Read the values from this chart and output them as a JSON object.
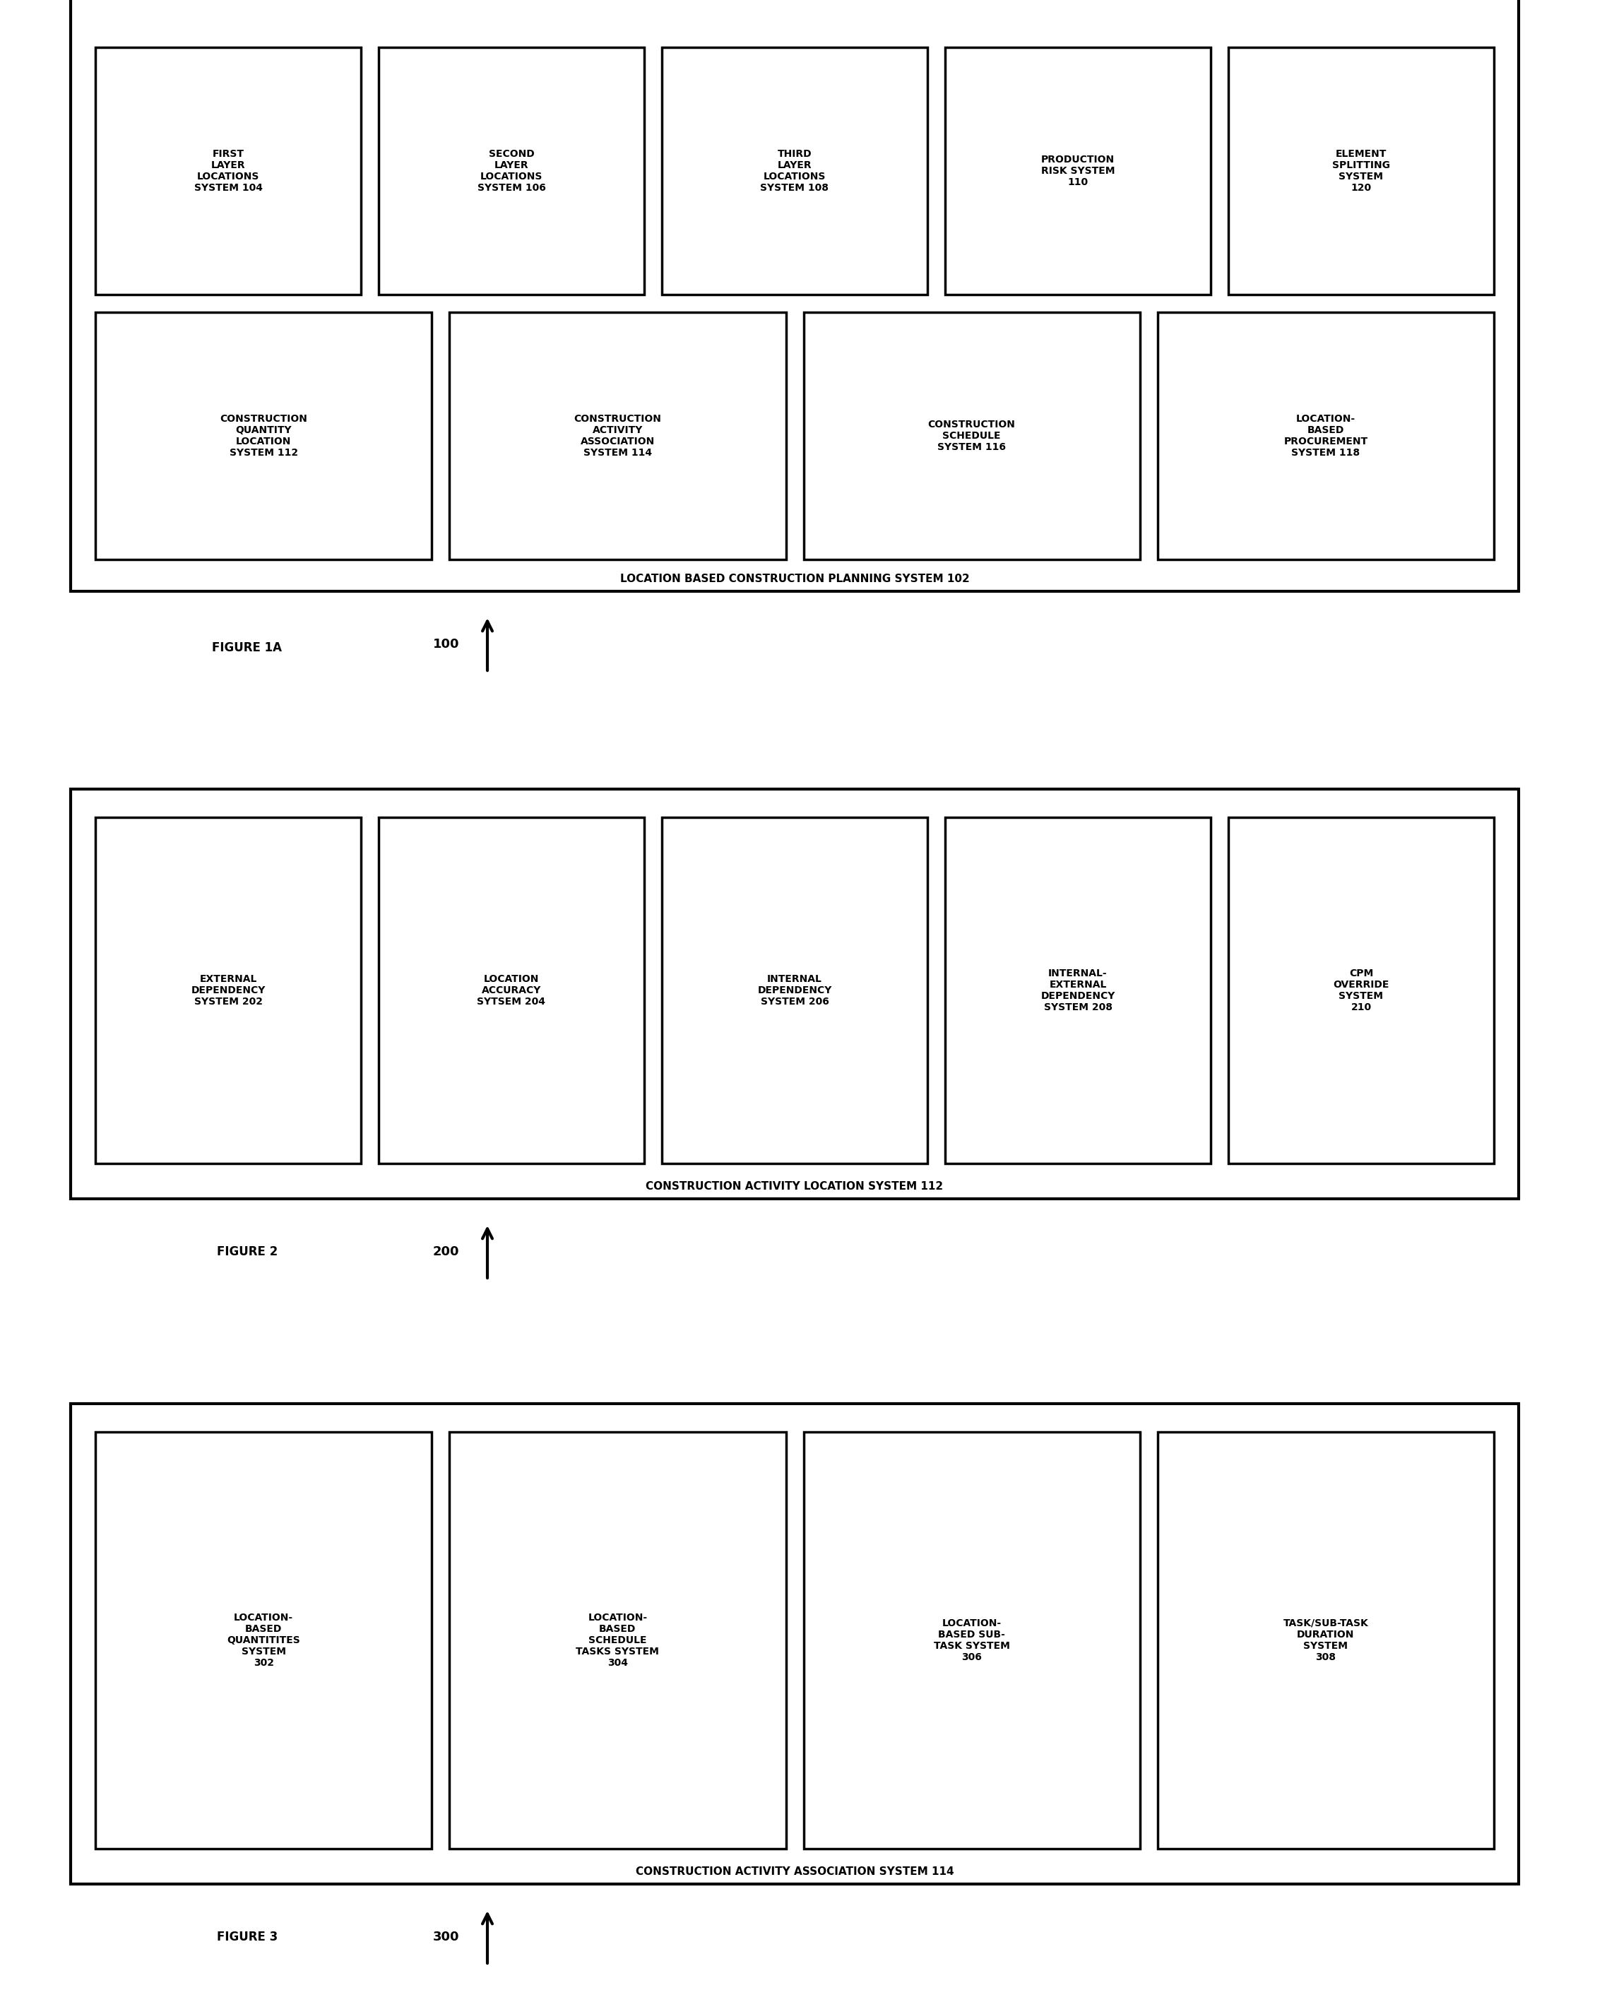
{
  "bg_color": "#ffffff",
  "fig1a": {
    "outer_label": "LOCATION BASED CONSTRUCTION PLANNING SYSTEM 102",
    "row1_boxes": [
      {
        "text": "FIRST\nLAYER\nLOCATIONS\nSYSTEM 104",
        "num": "104"
      },
      {
        "text": "SECOND\nLAYER\nLOCATIONS\nSYSTEM 106",
        "num": "106"
      },
      {
        "text": "THIRD\nLAYER\nLOCATIONS\nSYSTEM 108",
        "num": "108"
      },
      {
        "text": "PRODUCTION\nRISK SYSTEM\n110",
        "num": "110"
      },
      {
        "text": "ELEMENT\nSPLITTING\nSYSTEM\n120",
        "num": "120"
      }
    ],
    "row2_boxes": [
      {
        "text": "CONSTRUCTION\nQUANTITY\nLOCATION\nSYSTEM 112",
        "num": "112"
      },
      {
        "text": "CONSTRUCTION\nACTIVITY\nASSOCIATION\nSYSTEM 114",
        "num": "114"
      },
      {
        "text": "CONSTRUCTION\nSCHEDULE\nSYSTEM 116",
        "num": "116"
      },
      {
        "text": "LOCATION-\nBASED\nPROCUREMENT\nSYSTEM 118",
        "num": "118"
      }
    ],
    "figure_label": "FIGURE 1A",
    "ref_num": "100"
  },
  "fig2": {
    "outer_label": "CONSTRUCTION ACTIVITY LOCATION SYSTEM 112",
    "boxes": [
      {
        "text": "EXTERNAL\nDEPENDENCY\nSYSTEM 202",
        "num": "202"
      },
      {
        "text": "LOCATION\nACCURACY\nSYTSEM 204",
        "num": "204"
      },
      {
        "text": "INTERNAL\nDEPENDENCY\nSYSTEM 206",
        "num": "206"
      },
      {
        "text": "INTERNAL-\nEXTERNAL\nDEPENDENCY\nSYSTEM 208",
        "num": "208"
      },
      {
        "text": "CPM\nOVERRIDE\nSYSTEM\n210",
        "num": "210"
      }
    ],
    "figure_label": "FIGURE 2",
    "ref_num": "200"
  },
  "fig3": {
    "outer_label": "CONSTRUCTION ACTIVITY ASSOCIATION SYSTEM 114",
    "boxes": [
      {
        "text": "LOCATION-\nBASED\nQUANTITITES\nSYSTEM\n302",
        "num": "302"
      },
      {
        "text": "LOCATION-\nBASED\nSCHEDULE\nTASKS SYSTEM\n304",
        "num": "304"
      },
      {
        "text": "LOCATION-\nBASED SUB-\nTASK SYSTEM\n306",
        "num": "306"
      },
      {
        "text": "TASK/SUB-TASK\nDURATION\nSYSTEM\n308",
        "num": "308"
      }
    ],
    "figure_label": "FIGURE 3",
    "ref_num": "300"
  }
}
